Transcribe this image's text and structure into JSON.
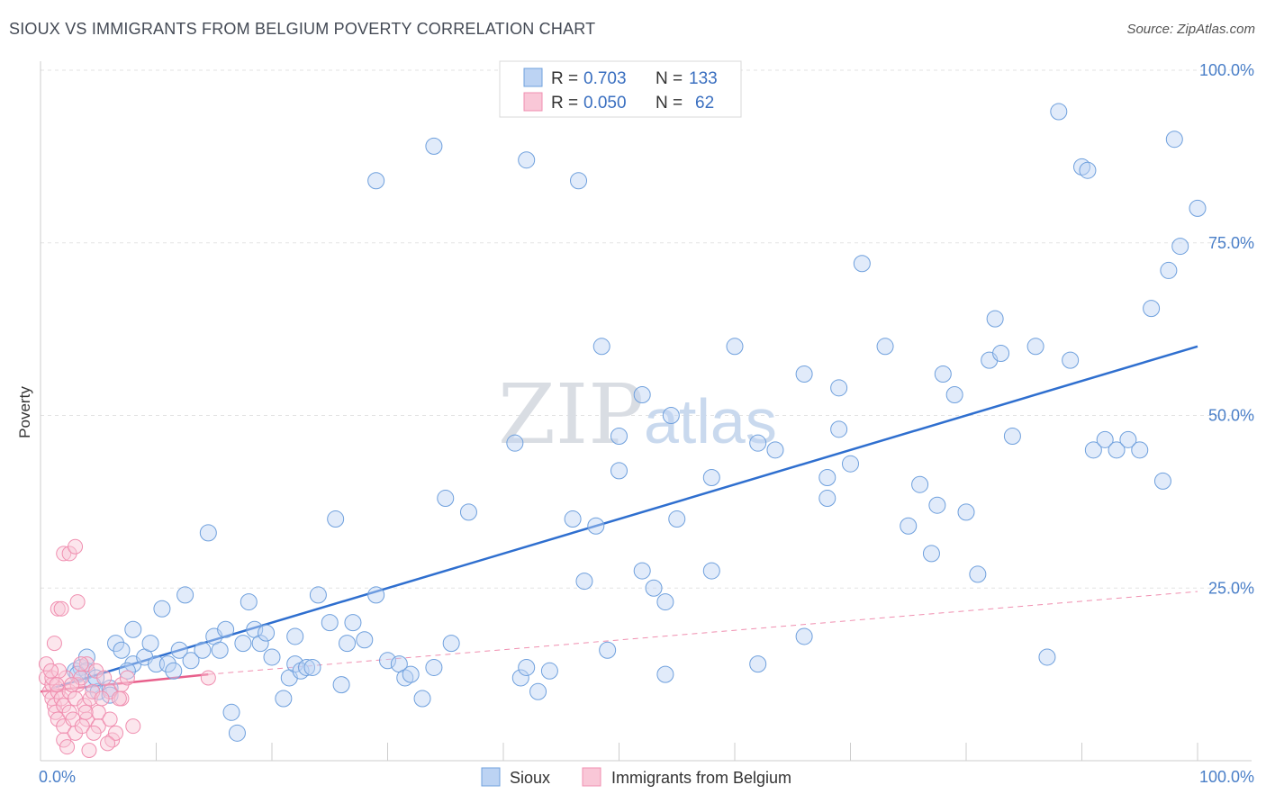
{
  "title": "SIOUX VS IMMIGRANTS FROM BELGIUM POVERTY CORRELATION CHART",
  "source": "Source: ZipAtlas.com",
  "watermark": {
    "zip": "ZIP",
    "atlas": "atlas"
  },
  "chart_data": {
    "type": "scatter",
    "xlabel": "",
    "ylabel": "Poverty",
    "xlim": [
      0,
      100
    ],
    "ylim": [
      0,
      100
    ],
    "x_tick_labels": [
      "0.0%",
      "100.0%"
    ],
    "y_ticks": [
      {
        "value": 25,
        "label": "25.0%"
      },
      {
        "value": 50,
        "label": "50.0%"
      },
      {
        "value": 75,
        "label": "75.0%"
      },
      {
        "value": 100,
        "label": "100.0%"
      }
    ],
    "legend": [
      {
        "r_label": "R =",
        "r_value": "0.703",
        "n_label": "N =",
        "n_value": "133"
      },
      {
        "r_label": "R =",
        "r_value": "0.050",
        "n_label": "N =",
        "n_value": "62"
      }
    ],
    "series": [
      {
        "name": "Sioux",
        "color": "#6fa0dd",
        "trend": {
          "x0": 1,
          "y0": 10.5,
          "x1": 100,
          "y1": 60
        },
        "points": [
          [
            3,
            13
          ],
          [
            3.5,
            13.5
          ],
          [
            4,
            15
          ],
          [
            4,
            13
          ],
          [
            4.5,
            11
          ],
          [
            5,
            10
          ],
          [
            6,
            10.5
          ],
          [
            6,
            9.5
          ],
          [
            6.5,
            17
          ],
          [
            7,
            16
          ],
          [
            8,
            19
          ],
          [
            8,
            14
          ],
          [
            9,
            15
          ],
          [
            9.5,
            17
          ],
          [
            10,
            14
          ],
          [
            10.5,
            22
          ],
          [
            11,
            14
          ],
          [
            11.5,
            13
          ],
          [
            12,
            16
          ],
          [
            12.5,
            24
          ],
          [
            13,
            14.5
          ],
          [
            14,
            16
          ],
          [
            14.5,
            33
          ],
          [
            15,
            18
          ],
          [
            15.5,
            16
          ],
          [
            16,
            19
          ],
          [
            16.5,
            7
          ],
          [
            17,
            4
          ],
          [
            17.5,
            17
          ],
          [
            18,
            23
          ],
          [
            18.5,
            19
          ],
          [
            19,
            17
          ],
          [
            19.5,
            18.5
          ],
          [
            20,
            15
          ],
          [
            21,
            9
          ],
          [
            21.5,
            12
          ],
          [
            22,
            14
          ],
          [
            22,
            18
          ],
          [
            22.5,
            13
          ],
          [
            23,
            13.5
          ],
          [
            23.5,
            13.5
          ],
          [
            24,
            24
          ],
          [
            25,
            20
          ],
          [
            25.5,
            35
          ],
          [
            26,
            11
          ],
          [
            26.5,
            17
          ],
          [
            27,
            20
          ],
          [
            28,
            17.5
          ],
          [
            29,
            24
          ],
          [
            30,
            14.5
          ],
          [
            31,
            14
          ],
          [
            31.5,
            12
          ],
          [
            32,
            12.5
          ],
          [
            33,
            9
          ],
          [
            34,
            13.5
          ],
          [
            35,
            38
          ],
          [
            35.5,
            17
          ],
          [
            37,
            36
          ],
          [
            29,
            84
          ],
          [
            34,
            89
          ],
          [
            41,
            46
          ],
          [
            41.5,
            12
          ],
          [
            42,
            13.5
          ],
          [
            43,
            10
          ],
          [
            44,
            13
          ],
          [
            42,
            87
          ],
          [
            46,
            35
          ],
          [
            46.5,
            84
          ],
          [
            47,
            26
          ],
          [
            48,
            34
          ],
          [
            48.5,
            60
          ],
          [
            49,
            16
          ],
          [
            50,
            47
          ],
          [
            50,
            42
          ],
          [
            52,
            27.5
          ],
          [
            52,
            53
          ],
          [
            53,
            25
          ],
          [
            54,
            23
          ],
          [
            54,
            12.5
          ],
          [
            54.5,
            50
          ],
          [
            55,
            35
          ],
          [
            58,
            41
          ],
          [
            58,
            27.5
          ],
          [
            60,
            60
          ],
          [
            62,
            14
          ],
          [
            62,
            46
          ],
          [
            63.5,
            45
          ],
          [
            66,
            18
          ],
          [
            66,
            56
          ],
          [
            68,
            41
          ],
          [
            68,
            38
          ],
          [
            69,
            48
          ],
          [
            69,
            54
          ],
          [
            70,
            43
          ],
          [
            71,
            72
          ],
          [
            73,
            60
          ],
          [
            75,
            34
          ],
          [
            76,
            40
          ],
          [
            77,
            30
          ],
          [
            77.5,
            37
          ],
          [
            78,
            56
          ],
          [
            79,
            53
          ],
          [
            80,
            36
          ],
          [
            81,
            27
          ],
          [
            82,
            58
          ],
          [
            82.5,
            64
          ],
          [
            83,
            59
          ],
          [
            84,
            47
          ],
          [
            86,
            60
          ],
          [
            87,
            15
          ],
          [
            88,
            94
          ],
          [
            89,
            58
          ],
          [
            90,
            86
          ],
          [
            90.5,
            85.5
          ],
          [
            91,
            45
          ],
          [
            92,
            46.5
          ],
          [
            93,
            45
          ],
          [
            94,
            46.5
          ],
          [
            95,
            45
          ],
          [
            96,
            65.5
          ],
          [
            97,
            40.5
          ],
          [
            97.5,
            71
          ],
          [
            98,
            90
          ],
          [
            98.5,
            74.5
          ],
          [
            100,
            80
          ],
          [
            3.2,
            12.5
          ],
          [
            4.8,
            12
          ],
          [
            7.5,
            13
          ]
        ]
      },
      {
        "name": "Immigrants from Belgium",
        "color": "#f08fb0",
        "trend": {
          "x0": 0,
          "y0": 10,
          "x1": 14.5,
          "y1": 12.5
        },
        "trend_extension": {
          "x0": 14.5,
          "y0": 12.5,
          "x1": 100,
          "y1": 24.5
        },
        "points": [
          [
            0.5,
            14
          ],
          [
            0.5,
            12
          ],
          [
            0.8,
            10
          ],
          [
            1,
            9
          ],
          [
            1,
            11
          ],
          [
            1.2,
            8
          ],
          [
            1.3,
            7
          ],
          [
            1.5,
            6
          ],
          [
            1.5,
            10
          ],
          [
            1.8,
            9
          ],
          [
            2,
            8
          ],
          [
            2,
            5
          ],
          [
            2,
            3
          ],
          [
            2.2,
            12
          ],
          [
            2.5,
            10
          ],
          [
            2.5,
            7
          ],
          [
            2.8,
            6
          ],
          [
            3,
            9
          ],
          [
            3,
            4
          ],
          [
            3.2,
            11
          ],
          [
            3.5,
            12
          ],
          [
            3.8,
            8
          ],
          [
            4,
            6
          ],
          [
            4,
            14
          ],
          [
            4.3,
            9
          ],
          [
            4.5,
            10
          ],
          [
            4.8,
            13
          ],
          [
            5,
            7
          ],
          [
            5,
            5
          ],
          [
            5.5,
            12
          ],
          [
            6,
            10
          ],
          [
            6,
            6
          ],
          [
            6.2,
            3
          ],
          [
            6.5,
            4
          ],
          [
            7,
            11
          ],
          [
            7,
            9
          ],
          [
            7.5,
            12
          ],
          [
            8,
            5
          ],
          [
            1.2,
            17
          ],
          [
            1.5,
            22
          ],
          [
            1.8,
            22
          ],
          [
            2,
            30
          ],
          [
            2.5,
            30
          ],
          [
            3,
            31
          ],
          [
            3.2,
            23
          ],
          [
            3.5,
            14
          ],
          [
            14.5,
            12
          ],
          [
            1,
            12
          ],
          [
            2.3,
            2
          ],
          [
            1.6,
            13
          ],
          [
            3.6,
            5
          ],
          [
            4.2,
            1.5
          ],
          [
            5.8,
            2.5
          ],
          [
            6.8,
            9
          ],
          [
            2.7,
            11
          ],
          [
            1.4,
            11
          ],
          [
            0.9,
            13
          ],
          [
            3.9,
            7
          ],
          [
            4.6,
            4
          ],
          [
            5.3,
            9
          ]
        ]
      }
    ]
  },
  "bottom_legend": [
    {
      "name": "Sioux",
      "color": "#6fa0dd"
    },
    {
      "name": "Immigrants from Belgium",
      "color": "#f08fb0"
    }
  ]
}
